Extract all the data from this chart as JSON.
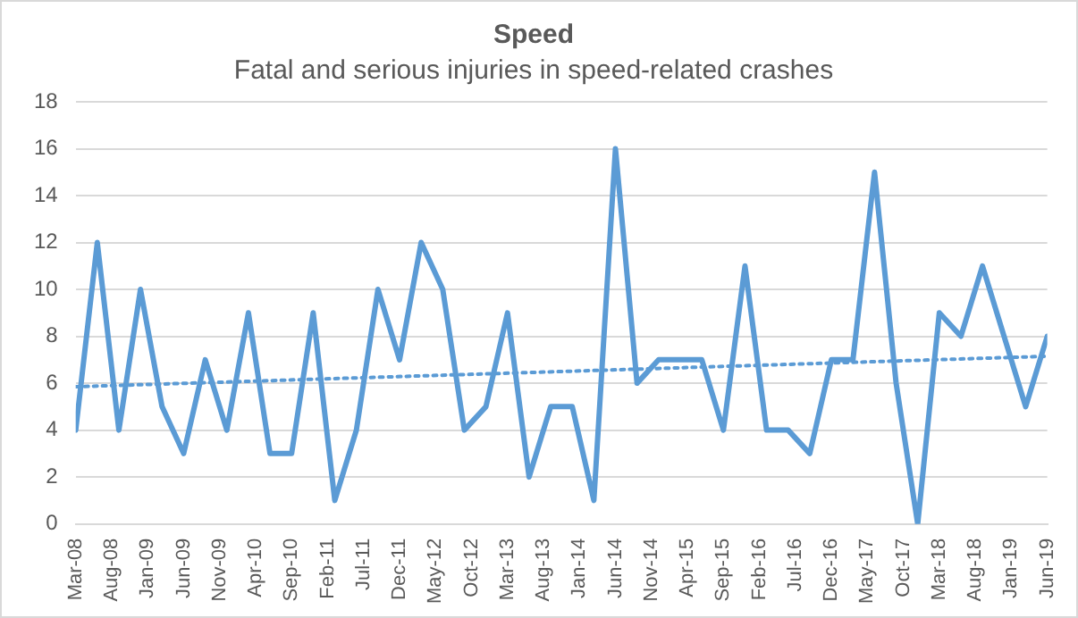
{
  "chart_data": {
    "type": "line",
    "title": "Speed",
    "subtitle": "Fatal and serious injuries in speed-related crashes",
    "x": [
      "2008-03",
      "2008-06",
      "2008-09",
      "2008-12",
      "2009-03",
      "2009-06",
      "2009-09",
      "2009-12",
      "2010-03",
      "2010-06",
      "2010-09",
      "2010-12",
      "2011-03",
      "2011-06",
      "2011-09",
      "2011-12",
      "2012-03",
      "2012-06",
      "2012-09",
      "2012-12",
      "2013-03",
      "2013-06",
      "2013-09",
      "2013-12",
      "2014-03",
      "2014-06",
      "2014-09",
      "2014-12",
      "2015-03",
      "2015-06",
      "2015-09",
      "2015-12",
      "2016-03",
      "2016-06",
      "2016-09",
      "2016-12",
      "2017-03",
      "2017-06",
      "2017-09",
      "2017-12",
      "2018-03",
      "2018-06",
      "2018-09",
      "2018-12",
      "2019-03",
      "2019-06"
    ],
    "series": [
      {
        "color": "#5b9bd5",
        "values": [
          4,
          12,
          4,
          10,
          5,
          3,
          7,
          4,
          9,
          3,
          3,
          9,
          1,
          4,
          10,
          7,
          12,
          10,
          4,
          5,
          9,
          2,
          5,
          5,
          1,
          16,
          6,
          7,
          7,
          7,
          4,
          11,
          4,
          4,
          3,
          7,
          7,
          15,
          6,
          0,
          9,
          8,
          11,
          8,
          5,
          8
        ],
        "line_style": "solid"
      },
      {
        "type": "line",
        "color": "#5b9bd5",
        "x": [
          "2008-03",
          "2019-06"
        ],
        "values": [
          5.85,
          7.15
        ],
        "line_style": "dotted"
      }
    ],
    "xlim": [
      "2008-03",
      "2019-06"
    ],
    "xticks": [
      {
        "value": "2008-03",
        "label": "Mar-08"
      },
      {
        "value": "2008-08",
        "label": "Aug-08"
      },
      {
        "value": "2009-01",
        "label": "Jan-09"
      },
      {
        "value": "2009-06",
        "label": "Jun-09"
      },
      {
        "value": "2009-11",
        "label": "Nov-09"
      },
      {
        "value": "2010-04",
        "label": "Apr-10"
      },
      {
        "value": "2010-09",
        "label": "Sep-10"
      },
      {
        "value": "2011-02",
        "label": "Feb-11"
      },
      {
        "value": "2011-07",
        "label": "Jul-11"
      },
      {
        "value": "2011-12",
        "label": "Dec-11"
      },
      {
        "value": "2012-05",
        "label": "May-12"
      },
      {
        "value": "2012-10",
        "label": "Oct-12"
      },
      {
        "value": "2013-03",
        "label": "Mar-13"
      },
      {
        "value": "2013-08",
        "label": "Aug-13"
      },
      {
        "value": "2014-01",
        "label": "Jan-14"
      },
      {
        "value": "2014-06",
        "label": "Jun-14"
      },
      {
        "value": "2014-11",
        "label": "Nov-14"
      },
      {
        "value": "2015-04",
        "label": "Apr-15"
      },
      {
        "value": "2015-09",
        "label": "Sep-15"
      },
      {
        "value": "2016-02",
        "label": "Feb-16"
      },
      {
        "value": "2016-07",
        "label": "Jul-16"
      },
      {
        "value": "2016-12",
        "label": "Dec-16"
      },
      {
        "value": "2017-05",
        "label": "May-17"
      },
      {
        "value": "2017-10",
        "label": "Oct-17"
      },
      {
        "value": "2018-03",
        "label": "Mar-18"
      },
      {
        "value": "2018-08",
        "label": "Aug-18"
      },
      {
        "value": "2019-01",
        "label": "Jan-19"
      },
      {
        "value": "2019-06",
        "label": "Jun-19"
      }
    ],
    "ylim": [
      0,
      18
    ],
    "yticks": [
      0,
      2,
      4,
      6,
      8,
      10,
      12,
      14,
      16,
      18
    ],
    "grid": "y",
    "legend": false,
    "marker": "none"
  }
}
